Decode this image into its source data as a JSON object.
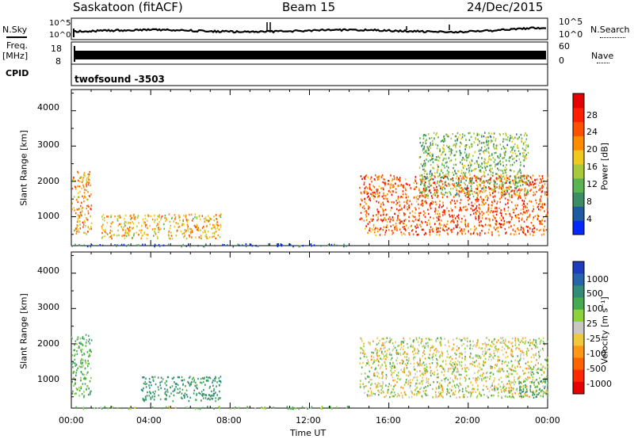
{
  "header": {
    "station": "Saskatoon (fitACF)",
    "beam": "Beam 15",
    "date": "24/Dec/2015"
  },
  "top_panels": {
    "nsky_label": "N.Sky",
    "nsky_ticks": [
      "10^5",
      "10^0"
    ],
    "nsearch_label": "N.Search",
    "freq_label_1": "Freq.",
    "freq_label_2": "[MHz]",
    "freq_ticks": [
      "18",
      "8"
    ],
    "nave_label": "Nave",
    "nave_ticks": [
      "60",
      "0"
    ],
    "cpid_label": "CPID",
    "cpid_value": "twofsound -3503"
  },
  "x_axis": {
    "label": "Time UT",
    "ticks": [
      "00:00",
      "04:00",
      "08:00",
      "12:00",
      "16:00",
      "20:00",
      "00:00"
    ]
  },
  "power_panel": {
    "ylabel": "Slant Range [km]",
    "yticks": [
      "4000",
      "3000",
      "2000",
      "1000"
    ],
    "colorbar_label": "Power [dB]",
    "colorbar_ticks": [
      "28",
      "24",
      "20",
      "16",
      "12",
      "8",
      "4"
    ],
    "colors": [
      "#0028ff",
      "#1e5aa0",
      "#3c8c64",
      "#5ab450",
      "#aac83c",
      "#f0c81e",
      "#ff8c00",
      "#ff5000",
      "#ff1e00",
      "#e60000"
    ]
  },
  "velocity_panel": {
    "ylabel": "Slant Range [km]",
    "yticks": [
      "4000",
      "3000",
      "2000",
      "1000"
    ],
    "colorbar_label": "Velocity [m s⁻¹]",
    "colorbar_ticks": [
      "1000",
      "500",
      "100",
      "25",
      "-25",
      "-100",
      "-500",
      "-1000"
    ],
    "colors": [
      "#1e3cbe",
      "#2864aa",
      "#328c78",
      "#46aa50",
      "#8cd23c",
      "#c8c8c0",
      "#f0c83c",
      "#ff9614",
      "#ff6400",
      "#ff2800",
      "#e60000"
    ]
  },
  "chart_data": [
    {
      "type": "heatmap",
      "title": "Power",
      "xlabel": "Time UT",
      "ylabel": "Slant Range [km]",
      "xlim": [
        "00:00",
        "24:00"
      ],
      "ylim": [
        180,
        4600
      ],
      "colorbar": "Power [dB]",
      "colorbar_range": [
        0,
        32
      ],
      "features": [
        {
          "time_start": "00:00",
          "time_end": "01:00",
          "range_start": 500,
          "range_end": 2300,
          "value_db": 20
        },
        {
          "time_start": "01:30",
          "time_end": "07:30",
          "range_start": 400,
          "range_end": 1100,
          "value_db": 18
        },
        {
          "time_start": "00:00",
          "time_end": "14:00",
          "range_start": 180,
          "range_end": 250,
          "value_db": 6
        },
        {
          "time_start": "14:30",
          "time_end": "24:00",
          "range_start": 500,
          "range_end": 2200,
          "value_db": 24
        },
        {
          "time_start": "17:30",
          "time_end": "23:00",
          "range_start": 1600,
          "range_end": 3400,
          "value_db": 12
        }
      ]
    },
    {
      "type": "heatmap",
      "title": "Velocity",
      "xlabel": "Time UT",
      "ylabel": "Slant Range [km]",
      "xlim": [
        "00:00",
        "24:00"
      ],
      "ylim": [
        180,
        4600
      ],
      "colorbar": "Velocity [m s-1]",
      "colorbar_range": [
        -1000,
        1000
      ],
      "features": [
        {
          "time_start": "00:00",
          "time_end": "01:00",
          "range_start": 500,
          "range_end": 2300,
          "value_ms": 150
        },
        {
          "time_start": "03:30",
          "time_end": "07:30",
          "range_start": 400,
          "range_end": 1100,
          "value_ms": 300
        },
        {
          "time_start": "00:00",
          "time_end": "14:00",
          "range_start": 180,
          "range_end": 250,
          "value_ms": 80
        },
        {
          "time_start": "14:30",
          "time_end": "24:00",
          "range_start": 500,
          "range_end": 2200,
          "value_ms": 0
        },
        {
          "time_start": "22:30",
          "time_end": "24:00",
          "range_start": 500,
          "range_end": 1000,
          "value_ms": 200
        }
      ]
    }
  ]
}
